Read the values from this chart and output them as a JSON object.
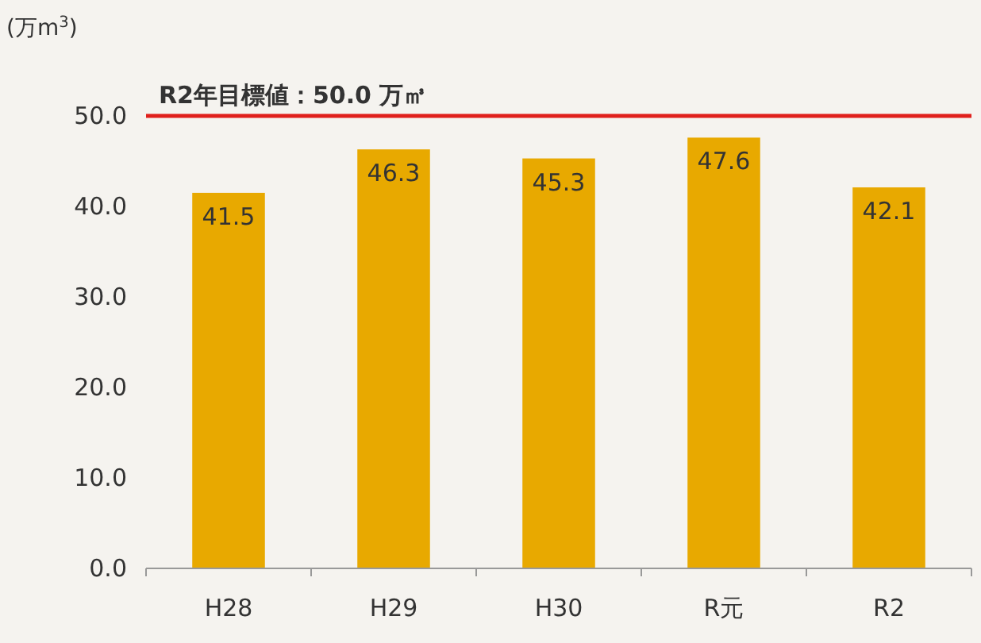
{
  "chart_data": {
    "type": "bar",
    "ylabel": "(万m$^{3}$)",
    "categories": [
      "H28",
      "H29",
      "H30",
      "R元",
      "R2"
    ],
    "values": [
      41.5,
      46.3,
      45.3,
      47.6,
      42.1
    ],
    "color": "#e8a900",
    "ylim": [
      0,
      50
    ],
    "yticks": [
      {
        "value": 0,
        "label": "0.0"
      },
      {
        "value": 10,
        "label": "10.0"
      },
      {
        "value": 20,
        "label": "20.0"
      },
      {
        "value": 30,
        "label": "30.0"
      },
      {
        "value": 40,
        "label": "40.0"
      },
      {
        "value": 50,
        "label": "50.0"
      }
    ],
    "ref_lines": [
      {
        "axis": "y",
        "value": 50,
        "label": "R2年目標値：50.0 万㎥",
        "color": "#e0201c"
      }
    ],
    "data_labels": true
  }
}
